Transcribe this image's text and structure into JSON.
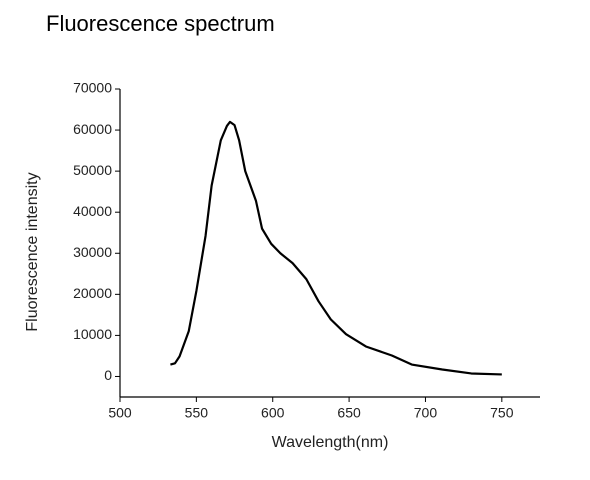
{
  "chart_data": {
    "type": "line",
    "title": "Fluorescence spectrum",
    "x_label": "Wavelength(nm)",
    "y_label": "Fluorescence intensity",
    "x": [
      533,
      536,
      539,
      545,
      550,
      556,
      560,
      566,
      570,
      572,
      575,
      578,
      582,
      589,
      593,
      599,
      605,
      613,
      622,
      630,
      638,
      648,
      661,
      678,
      691,
      711,
      730,
      750
    ],
    "series": [
      {
        "name": "Fluorescence",
        "color": "#000000",
        "values": [
          2900,
          3200,
          4900,
          11000,
          20800,
          34200,
          46500,
          57500,
          61000,
          62000,
          61200,
          57500,
          50000,
          42800,
          36000,
          32300,
          30000,
          27600,
          23700,
          18300,
          13900,
          10300,
          7300,
          5100,
          2900,
          1700,
          730,
          500
        ]
      }
    ],
    "xlim": [
      500,
      775
    ],
    "xticks": [
      500,
      550,
      600,
      650,
      700,
      750
    ],
    "ylim": [
      -5000,
      70000
    ],
    "yticks": [
      0,
      10000,
      20000,
      30000,
      40000,
      50000,
      60000,
      70000
    ]
  }
}
